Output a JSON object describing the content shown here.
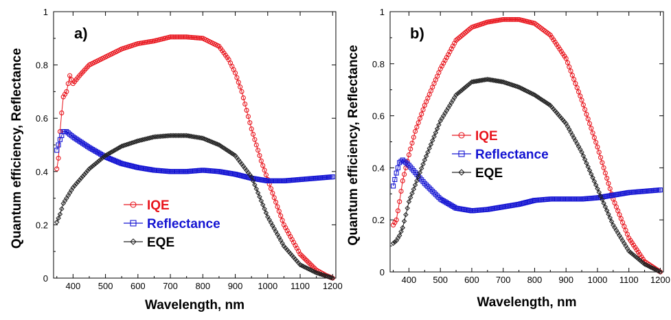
{
  "chart_data": [
    {
      "type": "line",
      "panel_label": "a)",
      "xlabel": "Wavelength, nm",
      "ylabel": "Quantum efficiency, Reflectance",
      "xlim": [
        340,
        1210
      ],
      "ylim": [
        0,
        1
      ],
      "xticks": [
        400,
        500,
        600,
        700,
        800,
        900,
        1000,
        1100,
        1200
      ],
      "yticks": [
        0,
        0.2,
        0.4,
        0.6,
        0.8,
        1
      ],
      "ytick_labels": [
        "0",
        "0.2",
        "0.4",
        "0.6",
        "0.8",
        "1"
      ],
      "grid": false,
      "legend_position": "lower-left",
      "series": [
        {
          "name": "IQE",
          "color": "#e8141c",
          "marker": "circle",
          "x": [
            350,
            355,
            360,
            365,
            370,
            380,
            390,
            400,
            420,
            450,
            500,
            550,
            600,
            650,
            700,
            750,
            800,
            850,
            880,
            900,
            920,
            950,
            980,
            1000,
            1050,
            1100,
            1150,
            1180,
            1200
          ],
          "y": [
            0.41,
            0.45,
            0.55,
            0.62,
            0.68,
            0.7,
            0.76,
            0.73,
            0.76,
            0.8,
            0.83,
            0.86,
            0.88,
            0.89,
            0.905,
            0.905,
            0.9,
            0.87,
            0.82,
            0.77,
            0.7,
            0.56,
            0.44,
            0.37,
            0.2,
            0.09,
            0.03,
            0.01,
            0.0
          ]
        },
        {
          "name": "Reflectance",
          "color": "#1414d2",
          "marker": "square",
          "x": [
            350,
            360,
            370,
            380,
            400,
            450,
            500,
            550,
            600,
            650,
            700,
            750,
            800,
            850,
            900,
            950,
            1000,
            1050,
            1100,
            1150,
            1200
          ],
          "y": [
            0.48,
            0.52,
            0.55,
            0.55,
            0.53,
            0.49,
            0.455,
            0.43,
            0.415,
            0.405,
            0.4,
            0.4,
            0.405,
            0.4,
            0.39,
            0.375,
            0.365,
            0.365,
            0.37,
            0.375,
            0.38
          ]
        },
        {
          "name": "EQE",
          "color": "#222222",
          "marker": "diamond",
          "x": [
            350,
            360,
            370,
            380,
            400,
            450,
            500,
            550,
            600,
            650,
            700,
            750,
            800,
            850,
            900,
            950,
            1000,
            1050,
            1100,
            1150,
            1200
          ],
          "y": [
            0.21,
            0.24,
            0.28,
            0.3,
            0.34,
            0.41,
            0.46,
            0.495,
            0.515,
            0.53,
            0.535,
            0.535,
            0.525,
            0.5,
            0.46,
            0.38,
            0.23,
            0.12,
            0.05,
            0.02,
            0.0
          ]
        }
      ]
    },
    {
      "type": "line",
      "panel_label": "b)",
      "xlabel": "Wavelength, nm",
      "ylabel": "Quantum efficiency, Reflectance",
      "xlim": [
        340,
        1210
      ],
      "ylim": [
        0,
        1
      ],
      "xticks": [
        400,
        500,
        600,
        700,
        800,
        900,
        1000,
        1100,
        1200
      ],
      "yticks": [
        0,
        0.2,
        0.4,
        0.6,
        0.8,
        1
      ],
      "ytick_labels": [
        "0",
        "0.2",
        "0.4",
        "0.6",
        "0.8",
        "1"
      ],
      "grid": false,
      "legend_position": "center-left",
      "series": [
        {
          "name": "IQE",
          "color": "#e8141c",
          "marker": "circle",
          "x": [
            350,
            360,
            370,
            380,
            400,
            420,
            450,
            500,
            550,
            600,
            650,
            700,
            750,
            800,
            850,
            900,
            950,
            1000,
            1050,
            1100,
            1150,
            1200
          ],
          "y": [
            0.18,
            0.2,
            0.27,
            0.35,
            0.45,
            0.54,
            0.64,
            0.78,
            0.89,
            0.94,
            0.96,
            0.97,
            0.97,
            0.955,
            0.91,
            0.82,
            0.66,
            0.48,
            0.28,
            0.13,
            0.04,
            0.0
          ]
        },
        {
          "name": "Reflectance",
          "color": "#1414d2",
          "marker": "square",
          "x": [
            350,
            360,
            370,
            380,
            400,
            450,
            500,
            550,
            600,
            650,
            700,
            750,
            800,
            850,
            900,
            950,
            1000,
            1050,
            1100,
            1150,
            1200
          ],
          "y": [
            0.33,
            0.38,
            0.42,
            0.43,
            0.41,
            0.34,
            0.28,
            0.245,
            0.235,
            0.24,
            0.25,
            0.26,
            0.275,
            0.28,
            0.28,
            0.28,
            0.285,
            0.295,
            0.305,
            0.31,
            0.315
          ]
        },
        {
          "name": "EQE",
          "color": "#222222",
          "marker": "diamond",
          "x": [
            350,
            360,
            370,
            380,
            400,
            450,
            500,
            550,
            600,
            650,
            700,
            750,
            800,
            850,
            900,
            950,
            1000,
            1050,
            1100,
            1150,
            1200
          ],
          "y": [
            0.11,
            0.12,
            0.14,
            0.17,
            0.27,
            0.43,
            0.58,
            0.68,
            0.73,
            0.74,
            0.73,
            0.71,
            0.68,
            0.64,
            0.57,
            0.46,
            0.32,
            0.18,
            0.08,
            0.03,
            0.0
          ]
        }
      ]
    }
  ]
}
